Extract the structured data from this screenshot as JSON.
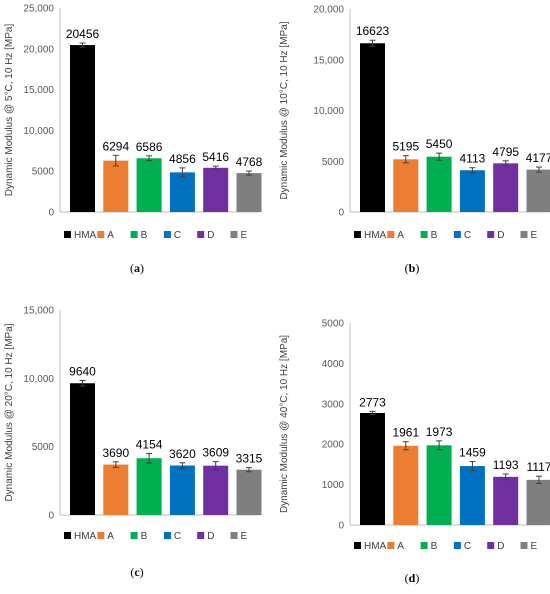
{
  "chart_data": [
    {
      "type": "bar",
      "panel_label": "a",
      "ylabel": "Dynamic Modulus @ 5°C, 10 Hz [MPa]",
      "ylim": [
        0,
        25000
      ],
      "yticks": [
        "0",
        "5000",
        "10,000",
        "15,000",
        "20,000",
        "25,000"
      ],
      "ytick_values": [
        0,
        5000,
        10000,
        15000,
        20000,
        25000
      ],
      "categories": [
        "HMA",
        "A",
        "B",
        "C",
        "D",
        "E"
      ],
      "values": [
        20456,
        6294,
        6586,
        4856,
        5416,
        4768
      ],
      "errors": [
        250,
        650,
        300,
        550,
        200,
        250
      ]
    },
    {
      "type": "bar",
      "panel_label": "b",
      "ylabel": "Dynamic Modulus @ 10°C, 10 Hz [MPa]",
      "ylim": [
        0,
        20000
      ],
      "yticks": [
        "0",
        "5000",
        "10,000",
        "15,000",
        "20,000"
      ],
      "ytick_values": [
        0,
        5000,
        10000,
        15000,
        20000
      ],
      "categories": [
        "HMA",
        "A",
        "B",
        "C",
        "D",
        "E"
      ],
      "values": [
        16623,
        5195,
        5450,
        4113,
        4795,
        4177
      ],
      "errors": [
        300,
        350,
        350,
        250,
        250,
        250
      ]
    },
    {
      "type": "bar",
      "panel_label": "c",
      "ylabel": "Dynamic Modulus @ 20°C, 10 Hz [MPa]",
      "ylim": [
        0,
        15000
      ],
      "yticks": [
        "0",
        "5000",
        "10,000",
        "15,000"
      ],
      "ytick_values": [
        0,
        5000,
        10000,
        15000
      ],
      "categories": [
        "HMA",
        "A",
        "B",
        "C",
        "D",
        "E"
      ],
      "values": [
        9640,
        3690,
        4154,
        3620,
        3609,
        3315
      ],
      "errors": [
        200,
        200,
        350,
        200,
        300,
        150
      ]
    },
    {
      "type": "bar",
      "panel_label": "d",
      "ylabel": "Dynamic Modulus @ 40°C, 10 Hz [MPa]",
      "ylim": [
        0,
        5000
      ],
      "yticks": [
        "0",
        "1000",
        "2000",
        "3000",
        "4000",
        "5000"
      ],
      "ytick_values": [
        0,
        1000,
        2000,
        3000,
        4000,
        5000
      ],
      "categories": [
        "HMA",
        "A",
        "B",
        "C",
        "D",
        "E"
      ],
      "values": [
        2773,
        1961,
        1973,
        1459,
        1193,
        1117
      ],
      "errors": [
        40,
        100,
        110,
        110,
        70,
        90
      ]
    }
  ],
  "colors": {
    "HMA": "#000000",
    "A": "#ED7D31",
    "B": "#00B050",
    "C": "#0070C0",
    "D": "#7030A0",
    "E": "#7F7F7F"
  },
  "captions": [
    "(a)",
    "(b)",
    "(c)",
    "(d)"
  ]
}
